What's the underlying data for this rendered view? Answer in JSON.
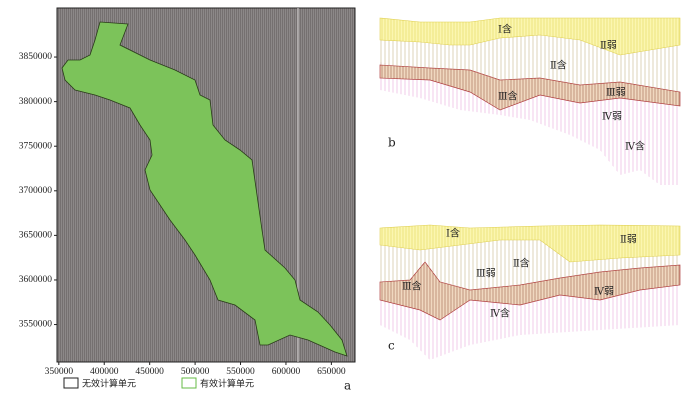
{
  "panel_a": {
    "label": "a",
    "xlim": [
      348000,
      676000
    ],
    "ylim": [
      3508000,
      3905000
    ],
    "xticks": [
      350000,
      400000,
      450000,
      500000,
      550000,
      600000,
      650000
    ],
    "yticks": [
      3550000,
      3600000,
      3650000,
      3700000,
      3750000,
      3800000,
      3850000
    ],
    "legend": [
      "无效计算单元",
      "有效计算单元"
    ]
  },
  "panel_b": {
    "label": "b",
    "layers": [
      "Ⅰ含",
      "Ⅱ弱",
      "Ⅱ含",
      "Ⅲ含",
      "Ⅲ弱",
      "Ⅳ弱",
      "Ⅳ含"
    ]
  },
  "panel_c": {
    "label": "c",
    "layers": [
      "Ⅰ含",
      "Ⅱ弱",
      "Ⅱ含",
      "Ⅲ弱",
      "Ⅲ含",
      "Ⅳ弱",
      "Ⅳ含"
    ]
  }
}
